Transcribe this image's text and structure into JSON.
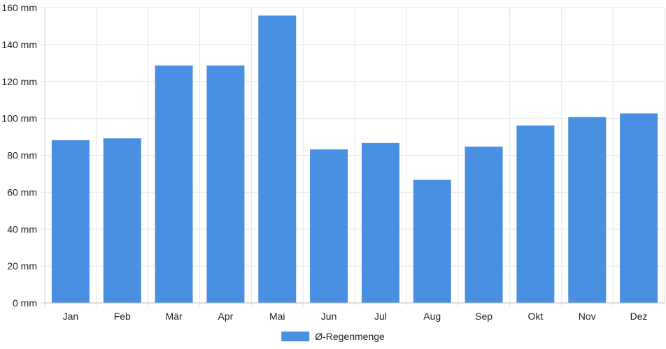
{
  "chart_data": {
    "type": "bar",
    "categories": [
      "Jan",
      "Feb",
      "Mär",
      "Apr",
      "Mai",
      "Jun",
      "Jul",
      "Aug",
      "Sep",
      "Okt",
      "Nov",
      "Dez"
    ],
    "series": [
      {
        "name": "Ø-Regenmenge",
        "color": "#4a90e2",
        "values": [
          88,
          89,
          128.5,
          128.5,
          155.5,
          83,
          86.5,
          66.5,
          84.5,
          96,
          100.5,
          102.5
        ]
      }
    ],
    "y_ticks": [
      "0 mm",
      "20 mm",
      "40 mm",
      "60 mm",
      "80 mm",
      "100 mm",
      "120 mm",
      "140 mm",
      "160 mm"
    ],
    "ylim": [
      0,
      160
    ],
    "y_step": 20,
    "grid": true,
    "legend_position": "bottom"
  }
}
